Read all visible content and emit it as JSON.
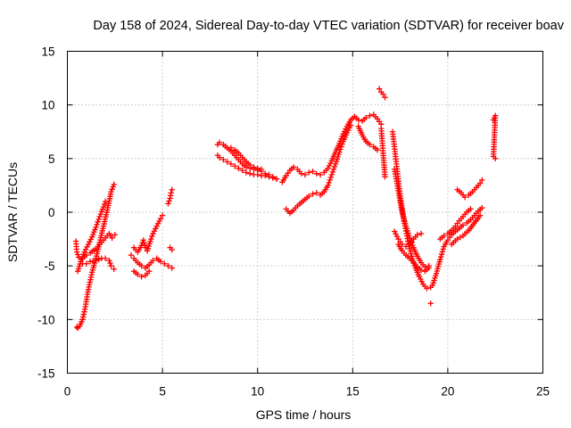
{
  "chart_data": {
    "type": "scatter",
    "title": "Day 158 of 2024, Sidereal Day-to-day VTEC variation (SDTVAR) for receiver boav",
    "xlabel": "GPS time / hours",
    "ylabel": "SDTVAR / TECUs",
    "xlim": [
      0,
      25
    ],
    "ylim": [
      -15,
      15
    ],
    "xticks": [
      0,
      5,
      10,
      15,
      20,
      25
    ],
    "yticks": [
      -15,
      -10,
      -5,
      0,
      5,
      10,
      15
    ],
    "grid": true,
    "marker": "+",
    "color": "#ff0000",
    "series": [
      {
        "name": "seg-a-main",
        "x": [
          0.45,
          0.5,
          0.6,
          0.8,
          1.0,
          1.2,
          1.5,
          1.8,
          2.0,
          2.2,
          2.35,
          2.5
        ],
        "y": [
          -2.7,
          -3.7,
          -4.2,
          -4.3,
          -4.0,
          -3.8,
          -3.4,
          -2.8,
          -2.4,
          -2.0,
          -2.4,
          -2.1
        ]
      },
      {
        "name": "seg-a-sub",
        "x": [
          0.8,
          1.0,
          1.2,
          1.5,
          1.8,
          2.0,
          2.2,
          2.3,
          2.45
        ],
        "y": [
          -4.8,
          -4.8,
          -4.6,
          -4.5,
          -4.3,
          -4.3,
          -4.5,
          -5.0,
          -5.3
        ]
      },
      {
        "name": "seg-a-rise",
        "x": [
          0.5,
          0.55,
          0.65,
          0.8,
          0.95,
          1.1,
          1.3,
          1.5,
          1.7,
          1.9,
          2.1,
          2.3,
          2.45
        ],
        "y": [
          -10.7,
          -10.8,
          -10.6,
          -10.0,
          -8.8,
          -7.2,
          -5.6,
          -4.3,
          -2.8,
          -1.3,
          0.2,
          1.9,
          2.6
        ]
      },
      {
        "name": "seg-a-up",
        "x": [
          0.55,
          0.7,
          0.9,
          1.1,
          1.3,
          1.5,
          1.7,
          1.9,
          2.0
        ],
        "y": [
          -5.5,
          -4.6,
          -3.7,
          -3.0,
          -2.3,
          -1.4,
          -0.4,
          0.5,
          1.0
        ]
      },
      {
        "name": "seg-b",
        "x": [
          3.35,
          3.5,
          3.7,
          3.9,
          4.1,
          4.3,
          4.5,
          4.7,
          4.9,
          5.1,
          5.3,
          5.5
        ],
        "y": [
          -4.0,
          -4.3,
          -4.7,
          -5.0,
          -5.2,
          -4.9,
          -4.5,
          -4.3,
          -4.6,
          -4.8,
          -5.0,
          -5.2
        ]
      },
      {
        "name": "seg-b-high",
        "x": [
          3.5,
          3.7,
          3.9,
          4.0,
          4.1,
          4.2,
          4.4,
          4.5,
          4.7,
          4.9,
          5.0
        ],
        "y": [
          -3.3,
          -3.7,
          -3.1,
          -2.6,
          -3.3,
          -3.6,
          -2.5,
          -2.0,
          -1.3,
          -0.6,
          -0.3
        ]
      },
      {
        "name": "seg-b-low",
        "x": [
          3.5,
          3.7,
          3.9,
          4.1,
          4.3
        ],
        "y": [
          -5.5,
          -5.8,
          -6.0,
          -5.9,
          -5.5
        ]
      },
      {
        "name": "seg-b-end",
        "x": [
          5.3,
          5.4,
          5.45,
          5.5,
          5.4,
          5.5
        ],
        "y": [
          0.8,
          1.3,
          1.8,
          2.1,
          -3.3,
          -3.5
        ]
      },
      {
        "name": "seg-c-upper",
        "x": [
          7.9,
          8.0,
          8.2,
          8.4,
          8.6,
          8.8,
          9.0,
          9.2,
          9.4,
          9.6,
          9.8,
          10.0,
          10.2,
          10.4,
          10.6,
          10.8,
          11.0
        ],
        "y": [
          6.3,
          6.5,
          6.3,
          6.0,
          5.7,
          5.3,
          4.9,
          4.5,
          4.2,
          4.1,
          4.0,
          3.9,
          3.8,
          3.6,
          3.5,
          3.3,
          3.1
        ]
      },
      {
        "name": "seg-c-lower",
        "x": [
          7.9,
          8.0,
          8.2,
          8.4,
          8.6,
          8.8,
          9.0,
          9.2,
          9.4,
          9.6,
          9.8,
          10.0,
          10.2,
          10.4,
          10.6,
          10.8,
          11.0
        ],
        "y": [
          5.3,
          5.1,
          4.9,
          4.7,
          4.5,
          4.3,
          4.1,
          3.9,
          3.7,
          3.6,
          3.5,
          3.5,
          3.4,
          3.4,
          3.3,
          3.2,
          3.1
        ]
      },
      {
        "name": "seg-c-mid",
        "x": [
          8.6,
          8.8,
          9.0,
          9.2,
          9.4,
          9.6,
          9.8,
          10.0,
          10.2
        ],
        "y": [
          6.0,
          5.8,
          5.5,
          5.1,
          4.7,
          4.4,
          4.2,
          4.1,
          4.0
        ]
      },
      {
        "name": "seg-d-upper",
        "x": [
          11.3,
          11.5,
          11.7,
          11.9,
          12.1,
          12.3,
          12.5,
          12.7,
          12.9,
          13.1,
          13.3,
          13.5,
          13.7,
          13.9,
          14.1,
          14.3,
          14.5,
          14.7,
          14.9,
          15.1
        ],
        "y": [
          2.8,
          3.4,
          3.9,
          4.2,
          4.0,
          3.6,
          3.5,
          3.7,
          3.8,
          3.6,
          3.5,
          3.7,
          4.1,
          4.8,
          5.6,
          6.4,
          7.3,
          8.0,
          8.6,
          8.9
        ]
      },
      {
        "name": "seg-d-lower",
        "x": [
          11.5,
          11.7,
          11.9,
          12.1,
          12.3,
          12.5,
          12.7,
          12.9,
          13.1,
          13.3,
          13.5,
          13.7,
          13.9,
          14.1,
          14.3,
          14.5,
          14.7,
          14.9
        ],
        "y": [
          0.3,
          -0.1,
          0.2,
          0.6,
          0.9,
          1.2,
          1.5,
          1.7,
          1.8,
          1.6,
          1.9,
          2.5,
          3.5,
          4.5,
          5.6,
          6.6,
          7.4,
          8.1
        ]
      },
      {
        "name": "seg-d-top",
        "x": [
          15.1,
          15.3,
          15.5,
          15.7,
          15.9,
          16.1,
          16.3,
          16.5
        ],
        "y": [
          8.9,
          8.6,
          8.5,
          8.8,
          9.0,
          9.1,
          8.7,
          8.2
        ]
      },
      {
        "name": "seg-d-bottom",
        "x": [
          15.3,
          15.5,
          15.7,
          15.9,
          16.1,
          16.3
        ],
        "y": [
          8.0,
          7.2,
          6.6,
          6.3,
          6.1,
          5.8
        ]
      },
      {
        "name": "seg-d-peak",
        "x": [
          16.4,
          16.5,
          16.6,
          16.7
        ],
        "y": [
          11.5,
          11.2,
          11.0,
          10.7
        ]
      },
      {
        "name": "seg-d-drop",
        "x": [
          16.5,
          16.6,
          16.7
        ],
        "y": [
          7.8,
          5.5,
          3.3
        ]
      },
      {
        "name": "seg-e-1",
        "x": [
          17.1,
          17.3,
          17.5,
          17.7,
          17.9,
          18.1,
          18.3,
          18.5,
          18.7,
          18.9,
          19.1
        ],
        "y": [
          7.5,
          4.5,
          1.5,
          -0.8,
          -2.7,
          -4.1,
          -5.2,
          -6.0,
          -6.7,
          -7.1,
          -7.0
        ]
      },
      {
        "name": "seg-e-2",
        "x": [
          17.2,
          17.4,
          17.6,
          17.8,
          18.0,
          18.2,
          18.4,
          18.6,
          18.8,
          19.0
        ],
        "y": [
          4.0,
          2.0,
          0.0,
          -1.3,
          -2.4,
          -3.3,
          -4.1,
          -4.7,
          -5.1,
          -5.0
        ]
      },
      {
        "name": "seg-e-3",
        "x": [
          17.2,
          17.4,
          17.6,
          17.8,
          18.0,
          18.2,
          18.4,
          18.6
        ],
        "y": [
          -1.8,
          -2.5,
          -3.0,
          -3.2,
          -3.0,
          -2.5,
          -2.1,
          -2.0
        ]
      },
      {
        "name": "seg-e-4",
        "x": [
          17.4,
          17.6,
          17.8,
          18.0,
          18.2,
          18.4,
          18.6,
          18.8,
          19.0
        ],
        "y": [
          -3.0,
          -3.6,
          -4.0,
          -4.3,
          -4.7,
          -5.1,
          -5.4,
          -5.5,
          -5.2
        ]
      },
      {
        "name": "seg-e-out",
        "x": [
          19.1
        ],
        "y": [
          -8.5
        ]
      },
      {
        "name": "seg-f-1",
        "x": [
          19.2,
          19.4,
          19.6,
          19.8,
          20.0,
          20.2,
          20.4,
          20.6,
          20.8,
          21.0,
          21.2,
          21.4,
          21.6,
          21.8
        ],
        "y": [
          -6.8,
          -5.7,
          -4.4,
          -3.2,
          -2.6,
          -2.1,
          -1.8,
          -1.5,
          -1.2,
          -1.0,
          -0.7,
          -0.3,
          0.1,
          0.4
        ]
      },
      {
        "name": "seg-f-2",
        "x": [
          19.6,
          19.8,
          20.0,
          20.2,
          20.4,
          20.6,
          20.8,
          21.0,
          21.2
        ],
        "y": [
          -2.5,
          -2.2,
          -2.0,
          -1.7,
          -1.3,
          -0.8,
          -0.4,
          0.0,
          0.3
        ]
      },
      {
        "name": "seg-f-3",
        "x": [
          20.2,
          20.5,
          20.8,
          21.1,
          21.4,
          21.7
        ],
        "y": [
          -3.0,
          -2.5,
          -2.2,
          -1.7,
          -1.0,
          -0.3
        ]
      },
      {
        "name": "seg-f-4",
        "x": [
          20.5,
          20.7,
          20.9,
          21.1,
          21.3,
          21.5,
          21.7,
          21.8
        ],
        "y": [
          2.1,
          1.8,
          1.4,
          1.6,
          1.9,
          2.3,
          2.7,
          3.0
        ]
      },
      {
        "name": "seg-f-end",
        "x": [
          22.4,
          22.5,
          22.4,
          22.5
        ],
        "y": [
          8.6,
          9.0,
          5.2,
          5.0
        ]
      }
    ]
  }
}
